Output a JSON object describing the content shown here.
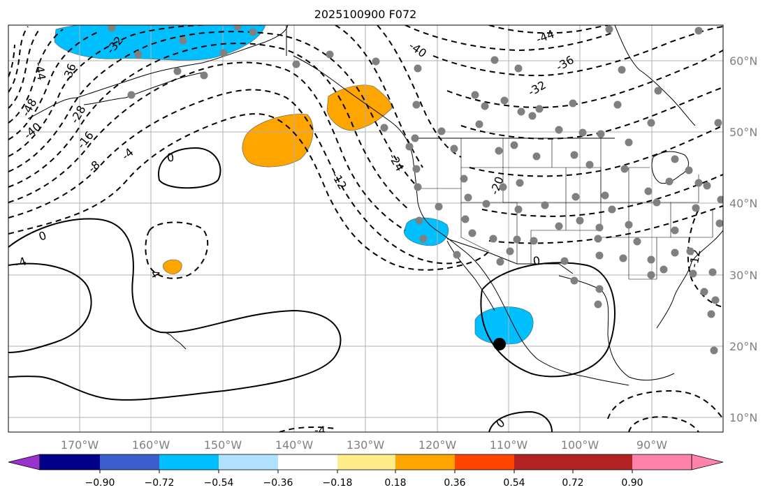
{
  "title": "2025100900 F072",
  "lon_labels": [
    "170°W",
    "160°W",
    "150°W",
    "140°W",
    "130°W",
    "120°W",
    "110°W",
    "100°W",
    "90°W"
  ],
  "lat_labels": [
    "60°N",
    "50°N",
    "40°N",
    "30°N",
    "20°N",
    "10°N"
  ],
  "contour_labels": [
    "-44",
    "-36",
    "-48",
    "-40",
    "-28",
    "-32",
    "-16",
    "-8",
    "-4",
    "0",
    "-40",
    "-44",
    "-36",
    "-32",
    "-12",
    "-24",
    "-20",
    "0",
    "-4",
    "-4",
    "0",
    "-12",
    "-4",
    "0"
  ],
  "colorbar": {
    "colors": [
      "#9932cc",
      "#00008b",
      "#3a5fcd",
      "#00bfff",
      "#b0e2ff",
      "#ffffff",
      "#ffec8b",
      "#ffa500",
      "#ff4500",
      "#b22222",
      "#ff82ab"
    ],
    "tick_labels": [
      "−0.90",
      "−0.72",
      "−0.54",
      "−0.36",
      "−0.18",
      "0.18",
      "0.36",
      "0.54",
      "0.72",
      "0.90"
    ]
  },
  "legend_colors": {
    "positive_fill": "#ffa500",
    "negative_fill": "#00bfff",
    "station_dot": "#808080"
  }
}
